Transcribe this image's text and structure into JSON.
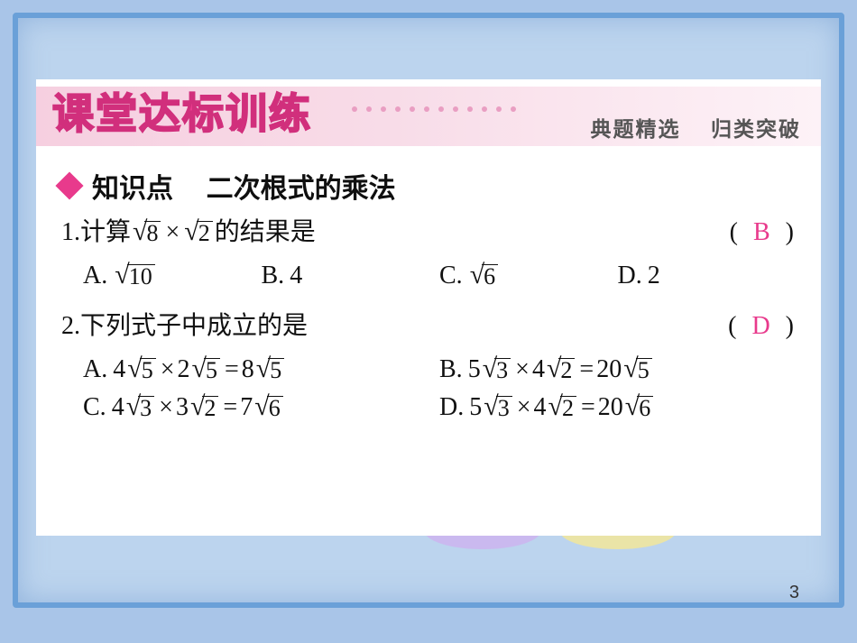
{
  "banner": {
    "title": "课堂达标训练",
    "subtitle_left": "典题精选",
    "subtitle_right": "归类突破",
    "title_color": "#e83a8c"
  },
  "section": {
    "bullet_color": "#e83a8c",
    "label": "知识点",
    "topic": "二次根式的乘法"
  },
  "q1": {
    "number": "1.",
    "stem_prefix": "计算",
    "expr_a_rad": "8",
    "times": "×",
    "expr_b_rad": "2",
    "stem_suffix": "的结果是",
    "answer": "B",
    "options": {
      "A": {
        "rad": "10"
      },
      "B": {
        "text": "4"
      },
      "C": {
        "rad": "6"
      },
      "D": {
        "text": "2"
      }
    }
  },
  "q2": {
    "number": "2.",
    "stem": "下列式子中成立的是",
    "answer": "D",
    "options": {
      "A": {
        "c1": "4",
        "r1": "5",
        "c2": "2",
        "r2": "5",
        "rc": "8",
        "rr": "5"
      },
      "B": {
        "c1": "5",
        "r1": "3",
        "c2": "4",
        "r2": "2",
        "rc": "20",
        "rr": "5"
      },
      "C": {
        "c1": "4",
        "r1": "3",
        "c2": "3",
        "r2": "2",
        "rc": "7",
        "rr": "6"
      },
      "D": {
        "c1": "5",
        "r1": "3",
        "c2": "4",
        "r2": "2",
        "rc": "20",
        "rr": "6"
      }
    }
  },
  "page_number": "3",
  "style": {
    "outer_border_color": "#6aa0d8",
    "background_color": "#a9c5e8",
    "answer_color": "#e83a8c",
    "body_font_size_pt": 21,
    "title_font_size_pt": 34
  }
}
